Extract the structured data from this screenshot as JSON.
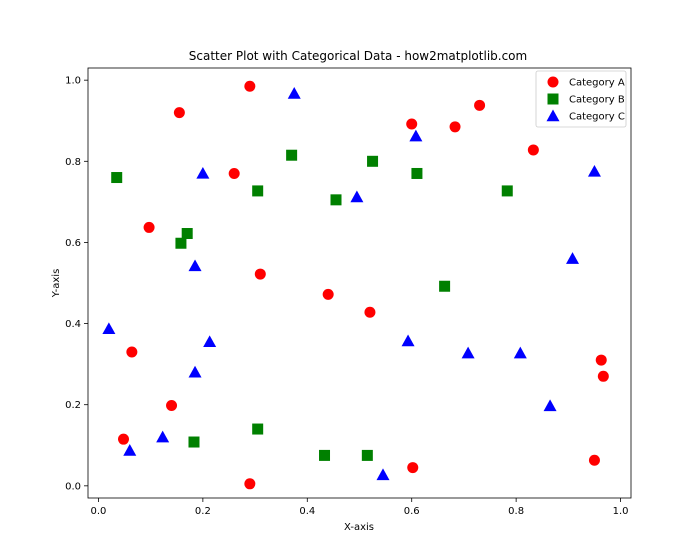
{
  "chart_data": {
    "type": "scatter",
    "title": "Scatter Plot with Categorical Data - how2matplotlib.com",
    "xlabel": "X-axis",
    "ylabel": "Y-axis",
    "xlim": [
      -0.02,
      1.02
    ],
    "ylim": [
      -0.03,
      1.03
    ],
    "xticks": [
      0.0,
      0.2,
      0.4,
      0.6,
      0.8,
      1.0
    ],
    "yticks": [
      0.0,
      0.2,
      0.4,
      0.6,
      0.8,
      1.0
    ],
    "xtick_labels": [
      "0.0",
      "0.2",
      "0.4",
      "0.6",
      "0.8",
      "1.0"
    ],
    "ytick_labels": [
      "0.0",
      "0.2",
      "0.4",
      "0.6",
      "0.8",
      "1.0"
    ],
    "grid": false,
    "legend_position": "top-right",
    "series": [
      {
        "name": "Category A",
        "marker": "circle",
        "color": "#ff0000",
        "x": [
          0.29,
          0.155,
          0.6,
          0.73,
          0.683,
          0.833,
          0.26,
          0.097,
          0.31,
          0.44,
          0.52,
          0.064,
          0.963,
          0.967,
          0.14,
          0.048,
          0.95,
          0.602,
          0.29
        ],
        "y": [
          0.985,
          0.92,
          0.892,
          0.938,
          0.885,
          0.828,
          0.77,
          0.637,
          0.522,
          0.472,
          0.428,
          0.33,
          0.31,
          0.27,
          0.198,
          0.115,
          0.063,
          0.045,
          0.005
        ]
      },
      {
        "name": "Category B",
        "marker": "square",
        "color": "#008000",
        "x": [
          0.035,
          0.37,
          0.525,
          0.305,
          0.455,
          0.61,
          0.17,
          0.158,
          0.783,
          0.663,
          0.183,
          0.305,
          0.433,
          0.515
        ],
        "y": [
          0.76,
          0.815,
          0.8,
          0.727,
          0.705,
          0.77,
          0.622,
          0.598,
          0.727,
          0.492,
          0.108,
          0.14,
          0.075,
          0.075
        ]
      },
      {
        "name": "Category C",
        "marker": "triangle",
        "color": "#0000ff",
        "x": [
          0.375,
          0.608,
          0.2,
          0.495,
          0.95,
          0.185,
          0.908,
          0.02,
          0.213,
          0.593,
          0.708,
          0.808,
          0.185,
          0.865,
          0.123,
          0.06,
          0.545
        ],
        "y": [
          0.967,
          0.862,
          0.77,
          0.712,
          0.775,
          0.542,
          0.56,
          0.387,
          0.355,
          0.357,
          0.327,
          0.327,
          0.28,
          0.197,
          0.12,
          0.087,
          0.027
        ]
      }
    ]
  }
}
